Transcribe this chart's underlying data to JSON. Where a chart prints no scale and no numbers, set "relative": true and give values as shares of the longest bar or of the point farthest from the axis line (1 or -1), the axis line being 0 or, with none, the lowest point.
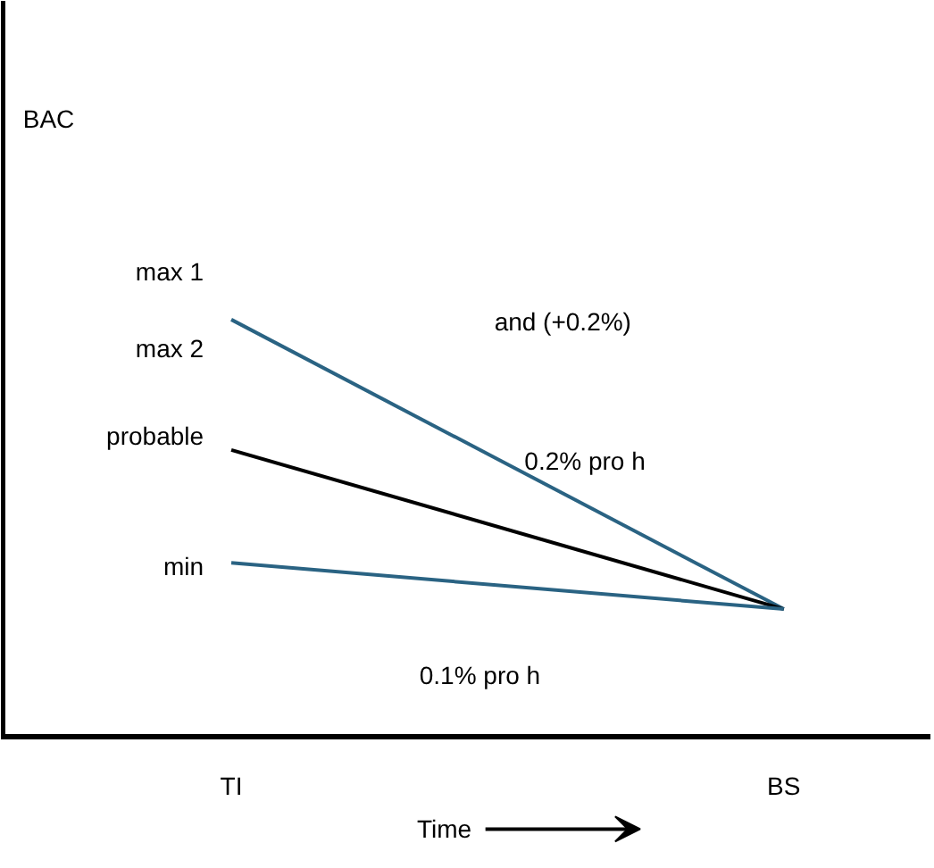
{
  "chart_data": {
    "type": "line",
    "relative": true,
    "xlabel": "Time",
    "categories": [
      "TI",
      "BS"
    ],
    "series": [
      {
        "color": "#2a6383",
        "values": [
          1,
          0.305
        ]
      },
      {
        "color": "#000000",
        "values": [
          0.687,
          0.305
        ]
      },
      {
        "color": "#2a6383",
        "values": [
          0.416,
          0.305
        ]
      }
    ],
    "annotations": [
      "BAC",
      "max 1",
      "max 2",
      "probable",
      "min",
      "and (+0.2%)",
      "0.2% pro h",
      "0.1% pro h"
    ]
  }
}
